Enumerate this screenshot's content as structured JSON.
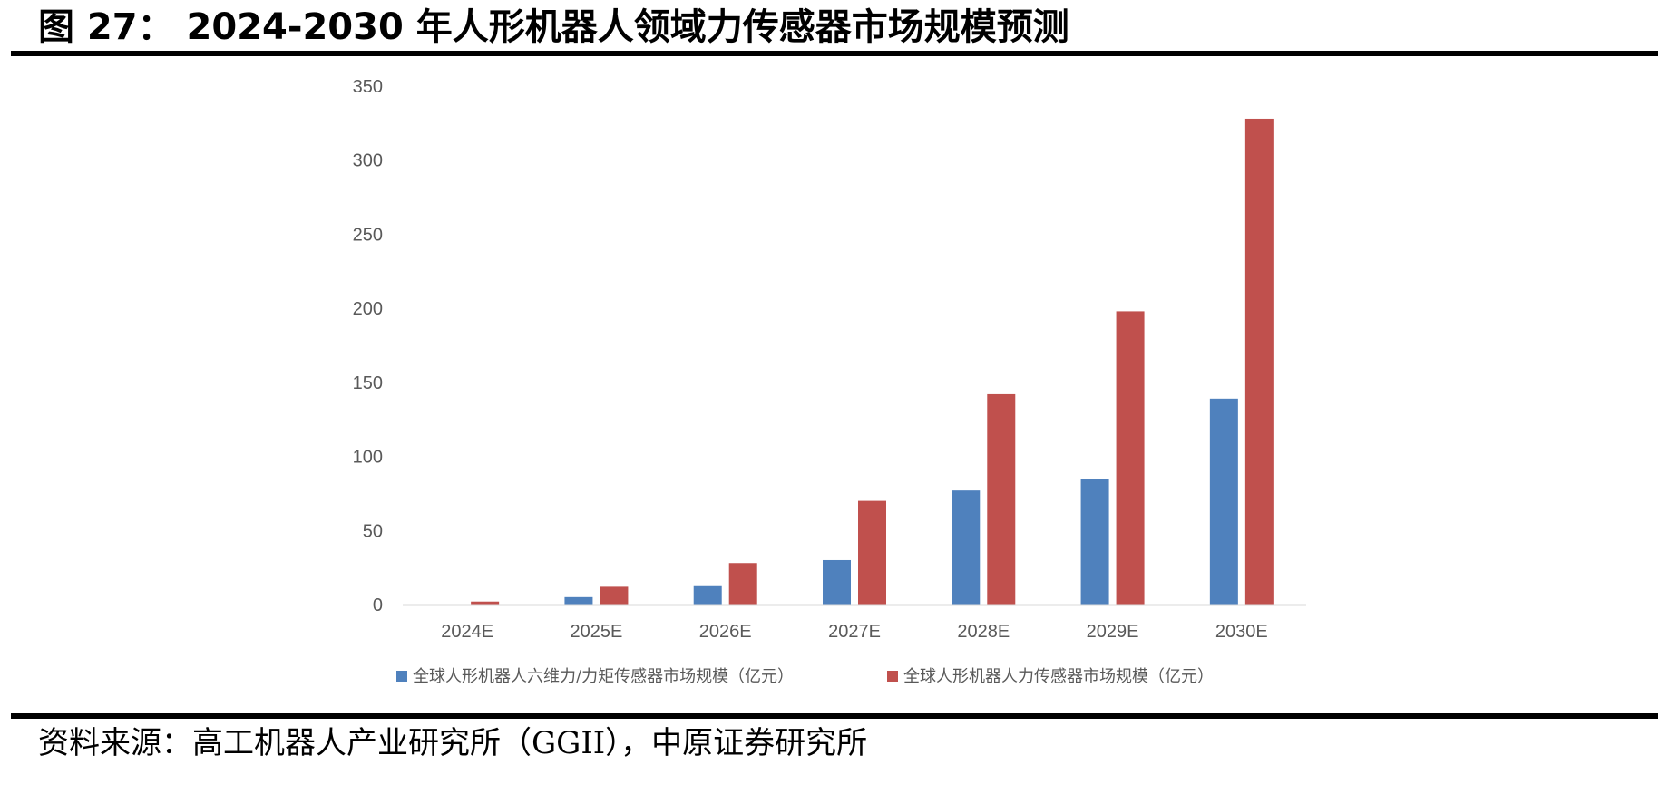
{
  "figure": {
    "title": "图 27： 2024-2030 年人形机器人领域力传感器市场规模预测",
    "source": "资料来源：高工机器人产业研究所（GGII），中原证券研究所"
  },
  "colors": {
    "series_1": "#4f81bd",
    "series_2": "#c0504d",
    "axis_text": "#595959",
    "baseline": "#d9d9d9",
    "rule": "#000000"
  },
  "chart_data": {
    "type": "bar",
    "categories": [
      "2024E",
      "2025E",
      "2026E",
      "2027E",
      "2028E",
      "2029E",
      "2030E"
    ],
    "series": [
      {
        "name": "全球人形机器人六维力/力矩传感器市场规模（亿元）",
        "values": [
          0,
          5,
          13,
          30,
          77,
          85,
          139
        ]
      },
      {
        "name": "全球人形机器人力传感器市场规模（亿元）",
        "values": [
          2,
          12,
          28,
          70,
          142,
          198,
          328
        ]
      }
    ],
    "ylim": [
      0,
      350
    ],
    "yticks": [
      "0",
      "50",
      "100",
      "150",
      "200",
      "250",
      "300",
      "350"
    ],
    "grid": false,
    "legend_position": "bottom"
  }
}
